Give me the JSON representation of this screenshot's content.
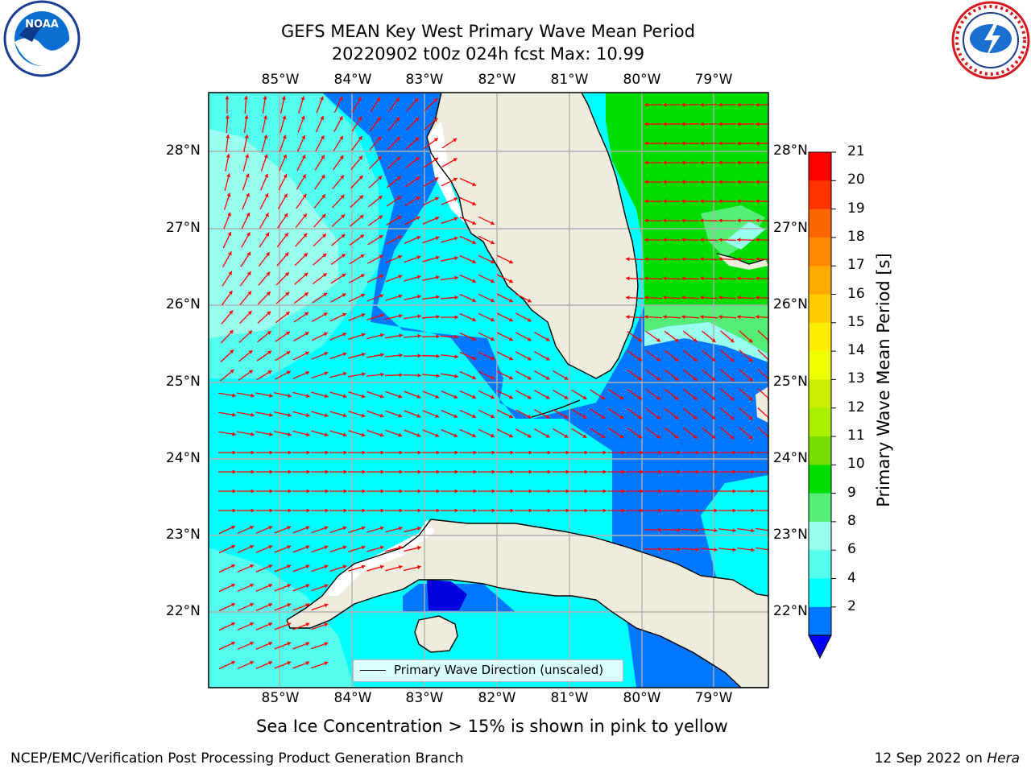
{
  "title": {
    "line1": "GEFS MEAN Key West Primary Wave Mean Period",
    "line2": "20220902 t00z 024h fcst   Max: 10.99"
  },
  "axes": {
    "lon_labels": [
      "85°W",
      "84°W",
      "83°W",
      "82°W",
      "81°W",
      "80°W",
      "79°W"
    ],
    "lat_labels": [
      "28°N",
      "27°N",
      "26°N",
      "25°N",
      "24°N",
      "23°N",
      "22°N"
    ]
  },
  "colorbar": {
    "label": "Primary Wave Mean Period [s]",
    "ticks": [
      "21",
      "20",
      "19",
      "18",
      "17",
      "16",
      "15",
      "14",
      "13",
      "12",
      "11",
      "10",
      "9",
      "8",
      "6",
      "4",
      "2"
    ],
    "colors": [
      "#ff0000",
      "#ff3300",
      "#ff6600",
      "#ff8800",
      "#ffaa00",
      "#ffcc00",
      "#ffee00",
      "#eeff00",
      "#ccee00",
      "#aaee00",
      "#77dd00",
      "#00dd00",
      "#55ee77",
      "#99ffee",
      "#55ffee",
      "#00ffff",
      "#0077ff"
    ],
    "extend_color": "#0000ff"
  },
  "legend": {
    "label": "Primary Wave Direction (unscaled)"
  },
  "notes": {
    "ice": "Sea Ice Concentration > 15% is shown in pink to yellow",
    "credit": "NCEP/EMC/Verification Post Processing Product Generation Branch",
    "date": "12 Sep 2022 on ",
    "host": "Hera"
  },
  "logos": {
    "left": "NOAA",
    "right": "NATIONAL WEATHER SERVICE"
  },
  "map_colors": {
    "land": "#eeecdc",
    "coast": "#000000",
    "grid": "#b0b0b0",
    "arrow": "#ff0000",
    "period_2_4": "#0077ff",
    "period_4_6": "#00ffff",
    "period_6_8": "#55ffee",
    "period_8_9": "#99ffee",
    "period_9_10": "#55ee77",
    "period_10_11": "#00dd00",
    "period_lt_2": "#0000dd"
  }
}
